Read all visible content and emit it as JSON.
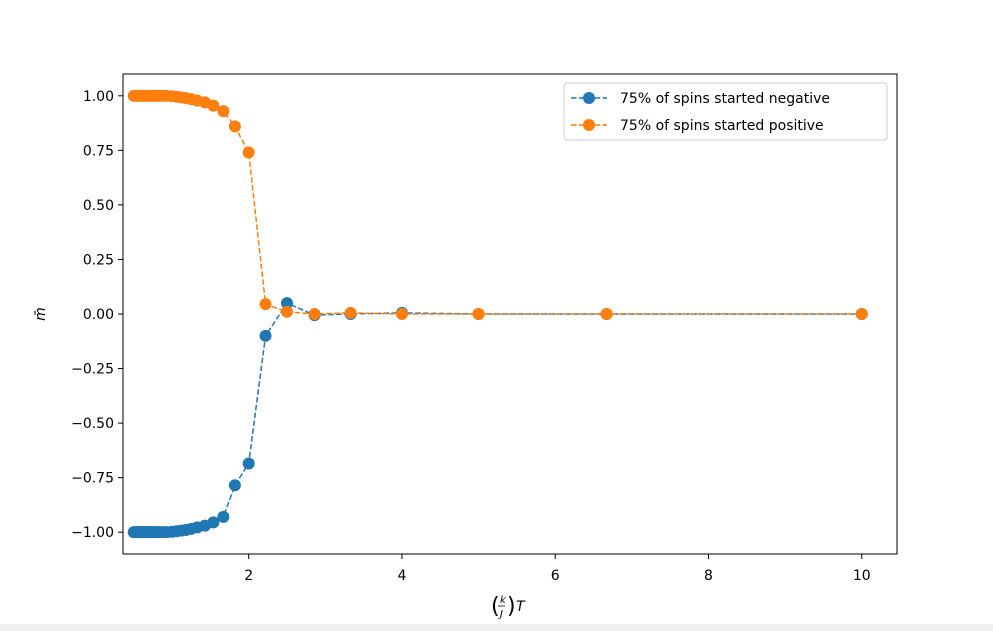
{
  "chart_data": {
    "type": "line",
    "title": "",
    "xlabel_parts": {
      "open": "(",
      "num": "k",
      "den": "J",
      "close": ")",
      "var": "T"
    },
    "ylabel": "m̄",
    "xlim": [
      0.36,
      10.46
    ],
    "ylim": [
      -1.1,
      1.1
    ],
    "xticks": [
      2,
      4,
      6,
      8,
      10
    ],
    "xtick_labels": [
      "2",
      "4",
      "6",
      "8",
      "10"
    ],
    "yticks": [
      1.0,
      0.75,
      0.5,
      0.25,
      0.0,
      -0.25,
      -0.5,
      -0.75,
      -1.0
    ],
    "ytick_labels": [
      "1.00",
      "0.75",
      "0.50",
      "0.25",
      "0.00",
      "−0.25",
      "−0.50",
      "−0.75",
      "−1.00"
    ],
    "grid": false,
    "legend_position": "top-right",
    "marker": "circle",
    "linestyle": "dashed",
    "series": [
      {
        "name": "75% of spins started negative",
        "color": "#1f77b4",
        "x": [
          0.5,
          0.52,
          0.54,
          0.56,
          0.58,
          0.6,
          0.62,
          0.64,
          0.66,
          0.68,
          0.7,
          0.72,
          0.74,
          0.76,
          0.78,
          0.8,
          0.83,
          0.86,
          0.89,
          0.93,
          1.0,
          1.06,
          1.12,
          1.18,
          1.25,
          1.33,
          1.43,
          1.54,
          1.67,
          1.82,
          2.0,
          2.22,
          2.5,
          2.86,
          3.33,
          4.0,
          5.0,
          6.67,
          10.0
        ],
        "values": [
          -1.0,
          -1.0,
          -1.0,
          -1.0,
          -1.0,
          -1.0,
          -1.0,
          -1.0,
          -1.0,
          -1.0,
          -1.0,
          -1.0,
          -1.0,
          -1.0,
          -1.0,
          -1.0,
          -1.0,
          -1.0,
          -1.0,
          -1.0,
          -0.998,
          -0.996,
          -0.993,
          -0.99,
          -0.985,
          -0.978,
          -0.97,
          -0.955,
          -0.93,
          -0.785,
          -0.685,
          -0.1,
          0.05,
          -0.005,
          0.0,
          0.005,
          0.0,
          0.0,
          0.0
        ]
      },
      {
        "name": "75% of spins started positive",
        "color": "#ff7f0e",
        "x": [
          0.5,
          0.52,
          0.54,
          0.56,
          0.58,
          0.6,
          0.62,
          0.64,
          0.66,
          0.68,
          0.7,
          0.72,
          0.74,
          0.76,
          0.78,
          0.8,
          0.83,
          0.86,
          0.89,
          0.93,
          1.0,
          1.06,
          1.12,
          1.18,
          1.25,
          1.33,
          1.43,
          1.54,
          1.67,
          1.82,
          2.0,
          2.22,
          2.5,
          2.86,
          3.33,
          4.0,
          5.0,
          6.67,
          10.0
        ],
        "values": [
          1.0,
          1.0,
          1.0,
          1.0,
          1.0,
          1.0,
          1.0,
          1.0,
          1.0,
          1.0,
          1.0,
          1.0,
          1.0,
          1.0,
          1.0,
          1.0,
          1.0,
          1.0,
          1.0,
          1.0,
          0.998,
          0.996,
          0.993,
          0.99,
          0.985,
          0.978,
          0.97,
          0.955,
          0.93,
          0.86,
          0.74,
          0.045,
          0.01,
          0.0,
          0.005,
          0.0,
          0.0,
          0.0,
          0.0
        ]
      }
    ]
  }
}
